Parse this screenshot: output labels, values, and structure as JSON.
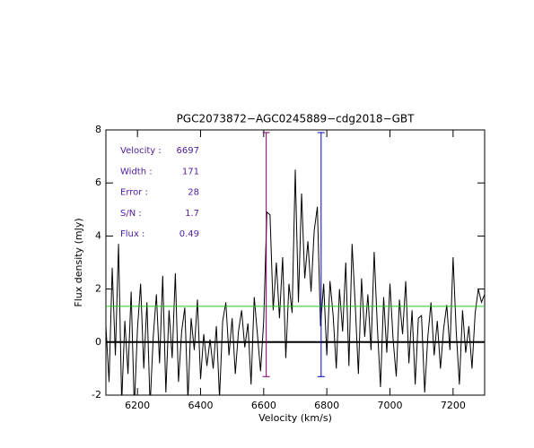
{
  "chart_data": {
    "type": "line",
    "title": "PGC2073872−AGC0245889−cdg2018−GBT",
    "xlabel": "Velocity (km/s)",
    "ylabel": "Flux density (mJy)",
    "xlim": [
      6100,
      7300
    ],
    "ylim": [
      -2,
      8
    ],
    "xticks": [
      6200,
      6400,
      6600,
      6800,
      7000,
      7200
    ],
    "yticks": [
      -2,
      0,
      2,
      4,
      6,
      8
    ],
    "series": [
      {
        "color": "#000000",
        "x": [
          6100,
          6110,
          6120,
          6130,
          6140,
          6150,
          6160,
          6170,
          6180,
          6190,
          6200,
          6210,
          6220,
          6230,
          6240,
          6250,
          6260,
          6270,
          6280,
          6290,
          6300,
          6310,
          6320,
          6330,
          6340,
          6350,
          6360,
          6370,
          6380,
          6390,
          6400,
          6410,
          6420,
          6430,
          6440,
          6450,
          6460,
          6470,
          6480,
          6490,
          6500,
          6510,
          6520,
          6530,
          6540,
          6550,
          6560,
          6570,
          6580,
          6590,
          6600,
          6610,
          6620,
          6630,
          6640,
          6650,
          6660,
          6670,
          6680,
          6690,
          6700,
          6710,
          6720,
          6730,
          6740,
          6750,
          6760,
          6770,
          6780,
          6790,
          6800,
          6810,
          6820,
          6830,
          6840,
          6850,
          6860,
          6870,
          6880,
          6890,
          6900,
          6910,
          6920,
          6930,
          6940,
          6950,
          6960,
          6970,
          6980,
          6990,
          7000,
          7010,
          7020,
          7030,
          7040,
          7050,
          7060,
          7070,
          7080,
          7090,
          7100,
          7110,
          7120,
          7130,
          7140,
          7150,
          7160,
          7170,
          7180,
          7190,
          7200,
          7210,
          7220,
          7230,
          7240,
          7250,
          7260,
          7270,
          7280,
          7290,
          7300
        ],
        "values": [
          0.6,
          -1.5,
          2.8,
          -0.5,
          3.7,
          -2.3,
          0.8,
          -1.2,
          1.9,
          -2.5,
          0.5,
          2.2,
          -1.0,
          1.5,
          -2.4,
          0.2,
          1.8,
          -0.8,
          2.5,
          -1.9,
          1.2,
          -0.6,
          2.6,
          -1.5,
          0.4,
          1.3,
          -2.2,
          0.9,
          -0.3,
          1.6,
          -1.4,
          0.3,
          -0.9,
          0.1,
          -1.0,
          0.6,
          -2.1,
          0.8,
          1.5,
          -0.5,
          0.9,
          -1.2,
          0.4,
          1.2,
          -0.2,
          0.7,
          -1.6,
          1.7,
          0.3,
          -1.1,
          0.8,
          4.9,
          4.8,
          1.2,
          3.0,
          0.9,
          3.2,
          -0.6,
          2.2,
          1.1,
          6.5,
          1.5,
          5.6,
          2.4,
          3.8,
          1.9,
          4.2,
          5.1,
          0.6,
          2.2,
          -0.5,
          2.3,
          1.0,
          -1.0,
          2.0,
          0.4,
          3.0,
          -0.9,
          3.7,
          1.4,
          -1.2,
          2.4,
          0.2,
          1.8,
          -0.3,
          3.4,
          0.6,
          -1.7,
          1.7,
          -0.4,
          2.2,
          0.1,
          -1.3,
          1.6,
          0.3,
          2.3,
          -0.8,
          1.2,
          -1.6,
          0.9,
          1.0,
          -1.9,
          0.2,
          1.5,
          -0.5,
          0.8,
          -1.0,
          0.5,
          1.4,
          -0.3,
          3.2,
          0.4,
          -1.6,
          1.2,
          -0.4,
          0.6,
          -1.0,
          1.1,
          2.0,
          1.5,
          1.8
        ]
      }
    ],
    "hlines": [
      {
        "value": 0,
        "color": "#000000"
      },
      {
        "value": 1.35,
        "color": "#22cc22"
      }
    ],
    "vlines": [
      {
        "value": 6608,
        "ymin": -1.3,
        "ymax": 7.9,
        "color": "#800060"
      },
      {
        "value": 6782,
        "ymin": -1.3,
        "ymax": 7.9,
        "color": "#0000cc"
      }
    ],
    "annotations": [
      {
        "label": "Velocity :",
        "value": "6697"
      },
      {
        "label": "Width :",
        "value": "171"
      },
      {
        "label": "Error :",
        "value": "28"
      },
      {
        "label": "S/N :",
        "value": "1.7"
      },
      {
        "label": "Flux :",
        "value": "0.49"
      }
    ],
    "annotation_color": "#5020a0"
  }
}
